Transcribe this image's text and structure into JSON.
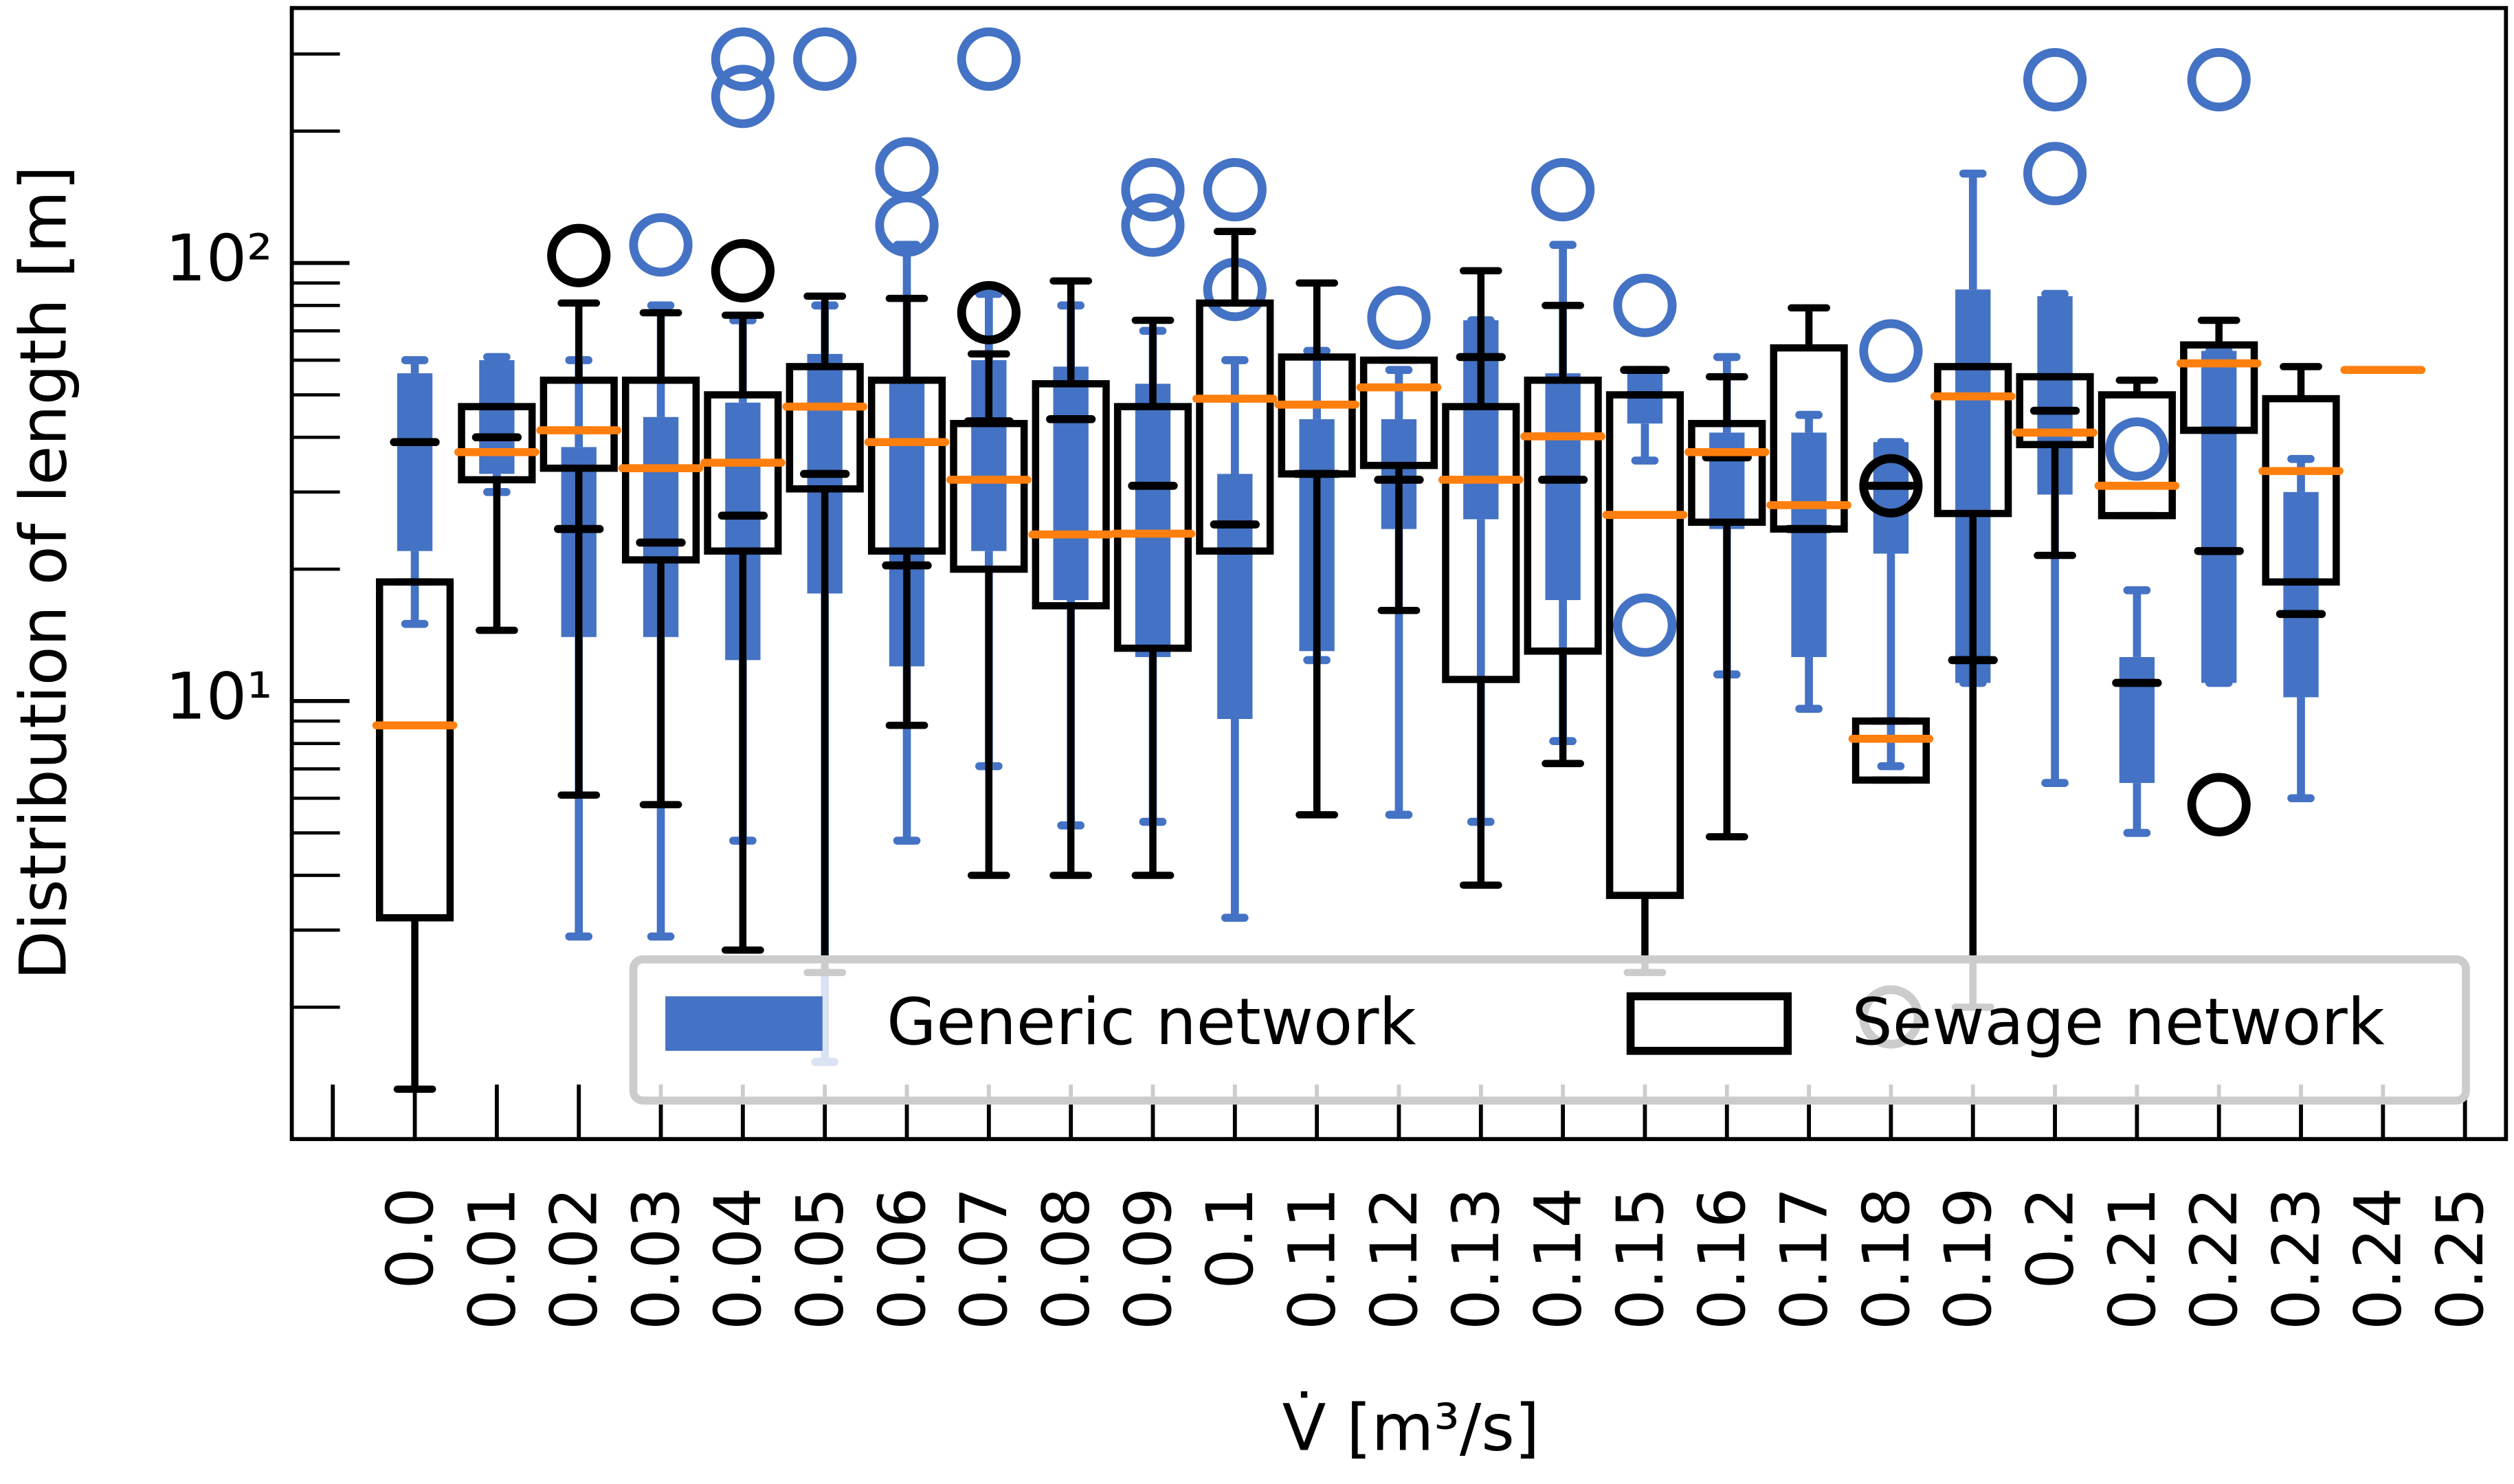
{
  "chart_data": {
    "type": "box",
    "x_label": "V̇ [m³/s]",
    "y_label": "Distribution of length [m]",
    "log_y": true,
    "ylim": [
      1,
      382
    ],
    "yticks": [
      {
        "value": 10,
        "label": "10¹"
      },
      {
        "value": 100,
        "label": "10²"
      }
    ],
    "yticks_minor": [
      2,
      3,
      4,
      5,
      6,
      7,
      8,
      9,
      20,
      30,
      40,
      50,
      60,
      70,
      80,
      90,
      200,
      300
    ],
    "legend": "lower right",
    "categories": [
      null,
      "0.0",
      "0.01",
      "0.02",
      "0.03",
      "0.04",
      "0.05",
      "0.06",
      "0.07",
      "0.08",
      "0.09",
      "0.1",
      "0.11",
      "0.12",
      "0.13",
      "0.14",
      "0.15",
      "0.16",
      "0.17",
      "0.18",
      "0.19",
      "0.2",
      "0.21",
      "0.22",
      "0.23",
      "0.24",
      "0.25"
    ],
    "series": [
      {
        "name": "Generic network",
        "color": "#4472c4",
        "filled": true,
        "median_color": "#000000",
        "boxes": [
          null,
          {
            "whislo": 15,
            "q1": 22,
            "med": 39,
            "q3": 56,
            "whishi": 60,
            "fliers": []
          },
          {
            "whislo": 30,
            "q1": 33,
            "med": 40,
            "q3": 60,
            "whishi": 61,
            "fliers": []
          },
          {
            "whislo": 2.9,
            "q1": 14,
            "med": 24.7,
            "q3": 38,
            "whishi": 60,
            "fliers": []
          },
          {
            "whislo": 2.9,
            "q1": 14,
            "med": 23,
            "q3": 44.5,
            "whishi": 80,
            "fliers": [
              110
            ]
          },
          {
            "whislo": 4.8,
            "q1": 12.4,
            "med": 26.5,
            "q3": 48,
            "whishi": 74,
            "fliers": [
              240,
              292
            ]
          },
          {
            "whislo": 1.5,
            "q1": 17.6,
            "med": 33,
            "q3": 62,
            "whishi": 80,
            "fliers": [
              292
            ]
          },
          {
            "whislo": 4.8,
            "q1": 12,
            "med": 20.4,
            "q3": 55,
            "whishi": 110,
            "fliers": [
              122,
              164
            ]
          },
          {
            "whislo": 7.1,
            "q1": 22,
            "med": 43.5,
            "q3": 60,
            "whishi": 85,
            "fliers": [
              292
            ]
          },
          {
            "whislo": 5.2,
            "q1": 17,
            "med": 44,
            "q3": 58,
            "whishi": 80,
            "fliers": []
          },
          {
            "whislo": 5.3,
            "q1": 12.6,
            "med": 31,
            "q3": 53,
            "whishi": 70,
            "fliers": [
              122,
              147
            ]
          },
          {
            "whislo": 3.2,
            "q1": 9.1,
            "med": 25.3,
            "q3": 33,
            "whishi": 60,
            "fliers": [
              87,
              147
            ]
          },
          {
            "whislo": 12.4,
            "q1": 13,
            "med": 33,
            "q3": 44,
            "whishi": 63,
            "fliers": []
          },
          {
            "whislo": 5.5,
            "q1": 24.7,
            "med": 32,
            "q3": 44,
            "whishi": 57,
            "fliers": [
              75
            ]
          },
          {
            "whislo": 5.3,
            "q1": 26,
            "med": 61,
            "q3": 74,
            "whishi": 74,
            "fliers": []
          },
          {
            "whislo": 8.1,
            "q1": 17,
            "med": 32,
            "q3": 56,
            "whishi": 110,
            "fliers": [
              147
            ]
          },
          {
            "whislo": 35.4,
            "q1": 43,
            "med": 57,
            "q3": 57,
            "whishi": 57,
            "fliers": [
              14.9,
              80
            ]
          },
          {
            "whislo": 11.5,
            "q1": 24.7,
            "med": 36,
            "q3": 41,
            "whishi": 61,
            "fliers": []
          },
          {
            "whislo": 9.6,
            "q1": 12.6,
            "med": 24.7,
            "q3": 41,
            "whishi": 45,
            "fliers": []
          },
          {
            "whislo": 7.1,
            "q1": 21.7,
            "med": 31,
            "q3": 39,
            "whishi": 39,
            "fliers": [
              63
            ]
          },
          {
            "whislo": 11,
            "q1": 11,
            "med": 12.4,
            "q3": 87,
            "whishi": 160,
            "fliers": []
          },
          {
            "whislo": 6.5,
            "q1": 29.6,
            "med": 46,
            "q3": 84,
            "whishi": 85,
            "fliers": [
              160,
              262
            ]
          },
          {
            "whislo": 5,
            "q1": 6.5,
            "med": 11,
            "q3": 12.6,
            "whishi": 17.9,
            "fliers": [
              37.6
            ]
          },
          {
            "whislo": 11,
            "q1": 11,
            "med": 22,
            "q3": 63,
            "whishi": 63,
            "fliers": [
              262
            ]
          },
          {
            "whislo": 6,
            "q1": 10.2,
            "med": 15.8,
            "q3": 30,
            "whishi": 35.7,
            "fliers": []
          },
          null,
          null
        ]
      },
      {
        "name": "Sewage network",
        "color": "#000000",
        "filled": false,
        "median_color": "#ff7f0e",
        "boxes": [
          null,
          {
            "whislo": 1.3,
            "q1": 3.2,
            "med": 8.8,
            "q3": 18.7,
            "whishi": 18.7,
            "fliers": []
          },
          {
            "whislo": 14.5,
            "q1": 32,
            "med": 37,
            "q3": 47,
            "whishi": 47,
            "fliers": []
          },
          {
            "whislo": 6.1,
            "q1": 34,
            "med": 41.5,
            "q3": 54,
            "whishi": 81,
            "fliers": [
              104
            ]
          },
          {
            "whislo": 5.8,
            "q1": 21,
            "med": 34,
            "q3": 54,
            "whishi": 77,
            "fliers": []
          },
          {
            "whislo": 2.7,
            "q1": 22,
            "med": 35,
            "q3": 50,
            "whishi": 76,
            "fliers": [
              96
            ]
          },
          {
            "whislo": 2.4,
            "q1": 30.5,
            "med": 47,
            "q3": 58,
            "whishi": 84,
            "fliers": []
          },
          {
            "whislo": 8.8,
            "q1": 22,
            "med": 39,
            "q3": 54,
            "whishi": 83,
            "fliers": []
          },
          {
            "whislo": 4,
            "q1": 20,
            "med": 32,
            "q3": 43,
            "whishi": 62,
            "fliers": [
              77
            ]
          },
          {
            "whislo": 4,
            "q1": 16.5,
            "med": 24,
            "q3": 53,
            "whishi": 91,
            "fliers": []
          },
          {
            "whislo": 4,
            "q1": 13.2,
            "med": 24.1,
            "q3": 47,
            "whishi": 74,
            "fliers": []
          },
          {
            "whislo": 22,
            "q1": 22,
            "med": 49,
            "q3": 81,
            "whishi": 118,
            "fliers": []
          },
          {
            "whislo": 5.5,
            "q1": 33,
            "med": 47.5,
            "q3": 61,
            "whishi": 90,
            "fliers": []
          },
          {
            "whislo": 16.1,
            "q1": 34.5,
            "med": 52,
            "q3": 60,
            "whishi": 60,
            "fliers": []
          },
          {
            "whislo": 3.8,
            "q1": 11.2,
            "med": 32,
            "q3": 47,
            "whishi": 96,
            "fliers": []
          },
          {
            "whislo": 7.2,
            "q1": 13,
            "med": 40.2,
            "q3": 54,
            "whishi": 80,
            "fliers": []
          },
          {
            "whislo": 2.4,
            "q1": 3.6,
            "med": 26.6,
            "q3": 50,
            "whishi": 50,
            "fliers": []
          },
          {
            "whislo": 4.9,
            "q1": 25.6,
            "med": 37,
            "q3": 43,
            "whishi": 55,
            "fliers": []
          },
          {
            "whislo": 24.7,
            "q1": 24.7,
            "med": 28,
            "q3": 64,
            "whishi": 79,
            "fliers": []
          },
          {
            "whislo": 6.6,
            "q1": 6.6,
            "med": 8.2,
            "q3": 9,
            "whishi": 9,
            "fliers": [
              1.9,
              31
            ]
          },
          {
            "whislo": 2,
            "q1": 26.8,
            "med": 49.6,
            "q3": 58,
            "whishi": 58,
            "fliers": []
          },
          {
            "whislo": 21.5,
            "q1": 38.5,
            "med": 41,
            "q3": 55,
            "whishi": 55,
            "fliers": []
          },
          {
            "whislo": 26.5,
            "q1": 26.5,
            "med": 31,
            "q3": 50,
            "whishi": 54,
            "fliers": []
          },
          {
            "whislo": 41.5,
            "q1": 41.5,
            "med": 59,
            "q3": 65,
            "whishi": 74,
            "fliers": [
              5.8
            ]
          },
          {
            "whislo": 18.7,
            "q1": 18.7,
            "med": 33.5,
            "q3": 49,
            "whishi": 58,
            "fliers": []
          },
          {
            "whislo": 57,
            "q1": 57,
            "med": 57,
            "q3": 57,
            "whishi": 57,
            "fliers": []
          },
          null
        ]
      }
    ]
  }
}
